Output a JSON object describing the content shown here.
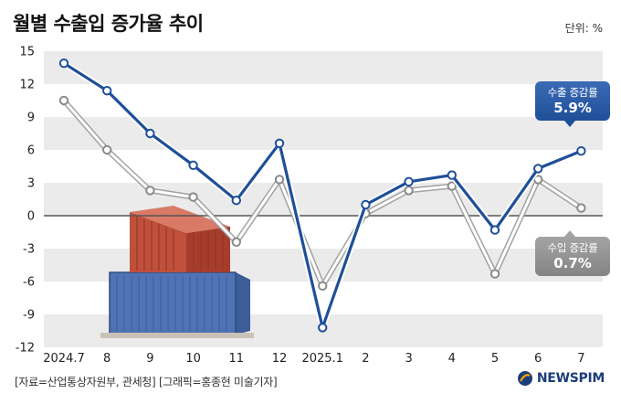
{
  "header": {
    "title": "월별 수출입 증가율 추이",
    "unit": "단위: %"
  },
  "footer": {
    "source": "[자료=산업통상자원부, 관세청] [그래픽=홍종현 미술기자]",
    "logo_text": "NEWSPIM"
  },
  "callouts": {
    "exports": {
      "label": "수출 증감률",
      "value": "5.9%"
    },
    "imports": {
      "label": "수입 증감률",
      "value": "0.7%"
    }
  },
  "colors": {
    "exports": "#1f4f99",
    "imports": "#ffffff",
    "band": "#ebebeb",
    "zero_line": "#555555"
  },
  "chart_data": {
    "type": "line",
    "categories": [
      "2024.7",
      "8",
      "9",
      "10",
      "11",
      "12",
      "2025.1",
      "2",
      "3",
      "4",
      "5",
      "6",
      "7"
    ],
    "ylim": [
      -12,
      15
    ],
    "yticks": [
      15,
      12,
      9,
      6,
      3,
      0,
      -3,
      -6,
      -9,
      -12
    ],
    "grid": "horizontal bands",
    "series": [
      {
        "name": "수출 증감률",
        "values": [
          13.9,
          11.4,
          7.5,
          4.6,
          1.4,
          6.6,
          -10.2,
          1.0,
          3.1,
          3.7,
          -1.3,
          4.3,
          5.9
        ]
      },
      {
        "name": "수입 증감률",
        "values": [
          10.5,
          6.0,
          2.3,
          1.7,
          -2.4,
          3.3,
          -6.4,
          0.2,
          2.3,
          2.7,
          -5.3,
          3.3,
          0.7
        ]
      }
    ]
  }
}
